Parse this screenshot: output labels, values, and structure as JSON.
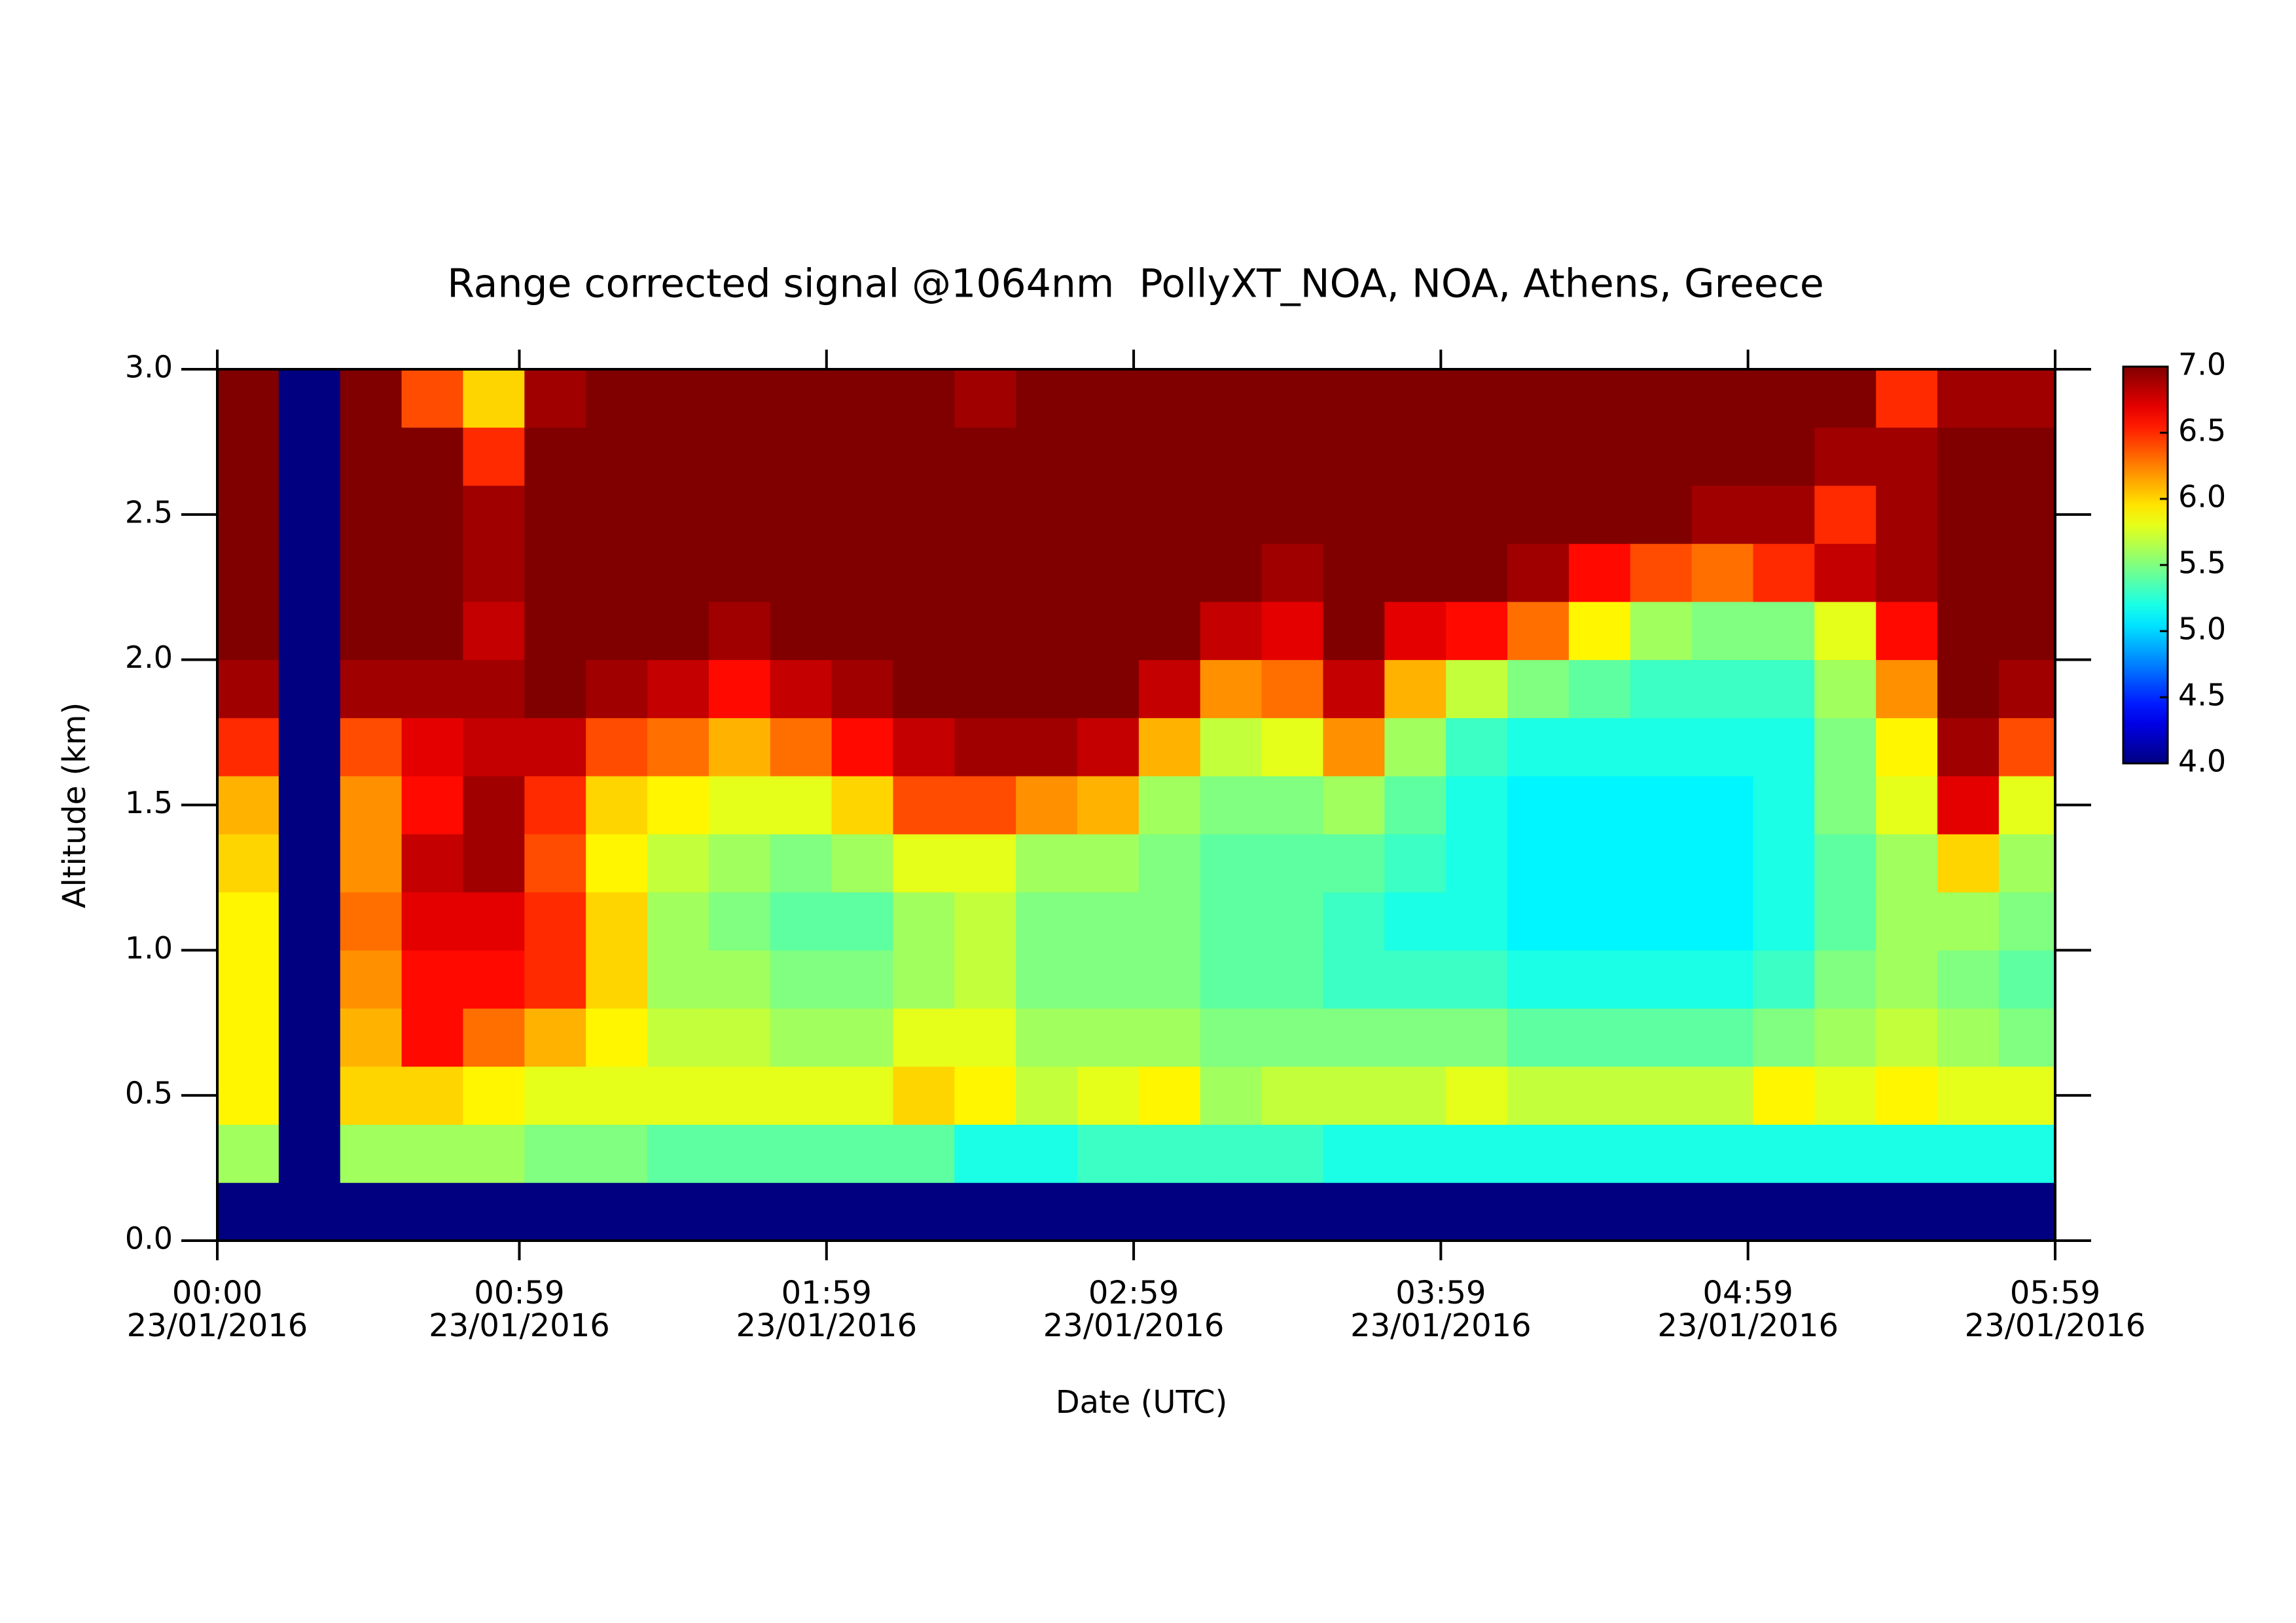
{
  "chart_data": {
    "type": "heatmap",
    "title": "Range corrected signal @1064nm  PollyXT_NOA, NOA, Athens, Greece",
    "x_label": "Date (UTC)",
    "y_label": "Altitude (km)",
    "xlim": [
      0,
      359
    ],
    "xticks": [
      {
        "value": 0,
        "label": "00:00\n23/01/2016"
      },
      {
        "value": 59,
        "label": "00:59\n23/01/2016"
      },
      {
        "value": 119,
        "label": "01:59\n23/01/2016"
      },
      {
        "value": 179,
        "label": "02:59\n23/01/2016"
      },
      {
        "value": 239,
        "label": "03:59\n23/01/2016"
      },
      {
        "value": 299,
        "label": "04:59\n23/01/2016"
      },
      {
        "value": 359,
        "label": "05:59\n23/01/2016"
      }
    ],
    "ylim": [
      0,
      3
    ],
    "yticks": [
      {
        "value": 0,
        "label": "0.0"
      },
      0.5,
      {
        "value": 1,
        "label": "1.0"
      },
      1.5,
      {
        "value": 2,
        "label": "2.0"
      },
      2.5,
      {
        "value": 3,
        "label": "3.0"
      }
    ],
    "colormap": "jet",
    "zlim": [
      4,
      7
    ],
    "zticks": [
      {
        "value": 4,
        "label": "4.0"
      },
      4.5,
      {
        "value": 5,
        "label": "5.0"
      },
      5.5,
      {
        "value": 6,
        "label": "6.0"
      },
      6.5,
      {
        "value": 7,
        "label": "7.0"
      }
    ],
    "x": [
      6,
      18,
      30,
      42,
      54,
      66,
      78,
      90,
      102,
      114,
      126,
      138,
      150,
      162,
      174,
      186,
      198,
      210,
      222,
      234,
      246,
      258,
      270,
      282,
      294,
      306,
      318,
      330,
      342,
      354
    ],
    "y": [
      0.1,
      0.3,
      0.5,
      0.7,
      0.9,
      1.1,
      1.3,
      1.5,
      1.7,
      1.9,
      2.1,
      2.3,
      2.5,
      2.7,
      2.9
    ],
    "z": [
      [
        4.0,
        5.6,
        5.9,
        5.9,
        5.9,
        5.9,
        6.0,
        6.1,
        6.5,
        6.9,
        7.0,
        7.0,
        7.0,
        7.0,
        7.0
      ],
      [
        4.0,
        4.0,
        4.0,
        4.0,
        4.0,
        4.0,
        4.0,
        4.0,
        4.0,
        4.0,
        4.0,
        4.0,
        4.0,
        4.0,
        4.0
      ],
      [
        4.0,
        5.6,
        6.0,
        6.1,
        6.2,
        6.3,
        6.2,
        6.2,
        6.4,
        6.9,
        7.0,
        7.0,
        7.0,
        7.0,
        7.0
      ],
      [
        4.0,
        5.6,
        6.0,
        6.6,
        6.6,
        6.7,
        6.8,
        6.6,
        6.7,
        6.9,
        7.0,
        7.0,
        7.0,
        7.0,
        6.4
      ],
      [
        4.0,
        5.6,
        5.9,
        6.3,
        6.6,
        6.7,
        6.9,
        6.9,
        6.8,
        6.9,
        6.8,
        6.9,
        6.9,
        6.5,
        6.0
      ],
      [
        4.0,
        5.5,
        5.8,
        6.1,
        6.5,
        6.5,
        6.4,
        6.5,
        6.8,
        7.0,
        7.0,
        7.0,
        7.0,
        7.0,
        6.9
      ],
      [
        4.0,
        5.5,
        5.8,
        5.9,
        6.0,
        6.0,
        5.9,
        6.0,
        6.4,
        6.9,
        7.0,
        7.0,
        7.0,
        7.0,
        7.0
      ],
      [
        4.0,
        5.4,
        5.8,
        5.7,
        5.6,
        5.6,
        5.7,
        5.9,
        6.3,
        6.8,
        7.0,
        7.0,
        7.0,
        7.0,
        7.0
      ],
      [
        4.0,
        5.4,
        5.8,
        5.7,
        5.6,
        5.5,
        5.6,
        5.8,
        6.1,
        6.6,
        6.9,
        7.0,
        7.0,
        7.0,
        7.0
      ],
      [
        4.0,
        5.4,
        5.8,
        5.6,
        5.5,
        5.4,
        5.5,
        5.8,
        6.3,
        6.8,
        7.0,
        7.0,
        7.0,
        7.0,
        7.0
      ],
      [
        4.0,
        5.4,
        5.8,
        5.6,
        5.5,
        5.4,
        5.6,
        6.0,
        6.6,
        6.9,
        7.0,
        7.0,
        7.0,
        7.0,
        7.0
      ],
      [
        4.0,
        5.4,
        6.0,
        5.8,
        5.6,
        5.6,
        5.8,
        6.4,
        6.8,
        7.0,
        7.0,
        7.0,
        7.0,
        7.0,
        7.0
      ],
      [
        4.0,
        5.2,
        5.9,
        5.8,
        5.7,
        5.7,
        5.8,
        6.4,
        6.9,
        7.0,
        7.0,
        7.0,
        7.0,
        7.0,
        6.9
      ],
      [
        4.0,
        5.2,
        5.7,
        5.6,
        5.5,
        5.5,
        5.6,
        6.2,
        6.9,
        7.0,
        7.0,
        7.0,
        7.0,
        7.0,
        7.0
      ],
      [
        4.0,
        5.3,
        5.8,
        5.6,
        5.5,
        5.5,
        5.6,
        6.1,
        6.8,
        7.0,
        7.0,
        7.0,
        7.0,
        7.0,
        7.0
      ],
      [
        4.0,
        5.3,
        5.9,
        5.6,
        5.5,
        5.5,
        5.5,
        5.6,
        6.1,
        6.8,
        7.0,
        7.0,
        7.0,
        7.0,
        7.0
      ],
      [
        4.0,
        5.3,
        5.6,
        5.5,
        5.4,
        5.4,
        5.4,
        5.5,
        5.7,
        6.2,
        6.8,
        7.0,
        7.0,
        7.0,
        7.0
      ],
      [
        4.0,
        5.3,
        5.7,
        5.5,
        5.4,
        5.4,
        5.4,
        5.5,
        5.8,
        6.3,
        6.7,
        6.9,
        7.0,
        7.0,
        7.0
      ],
      [
        4.0,
        5.2,
        5.7,
        5.5,
        5.3,
        5.3,
        5.4,
        5.6,
        6.2,
        6.8,
        7.0,
        7.0,
        7.0,
        7.0,
        7.0
      ],
      [
        4.0,
        5.2,
        5.7,
        5.5,
        5.3,
        5.2,
        5.3,
        5.4,
        5.6,
        6.1,
        6.7,
        7.0,
        7.0,
        7.0,
        7.0
      ],
      [
        4.0,
        5.2,
        5.8,
        5.5,
        5.3,
        5.2,
        5.2,
        5.2,
        5.3,
        5.7,
        6.6,
        7.0,
        7.0,
        7.0,
        7.0
      ],
      [
        4.0,
        5.2,
        5.7,
        5.4,
        5.2,
        5.1,
        5.1,
        5.1,
        5.2,
        5.5,
        6.3,
        6.9,
        7.0,
        7.0,
        7.0
      ],
      [
        4.0,
        5.2,
        5.7,
        5.4,
        5.2,
        5.1,
        5.1,
        5.1,
        5.2,
        5.4,
        5.9,
        6.6,
        7.0,
        7.0,
        7.0
      ],
      [
        4.0,
        5.2,
        5.7,
        5.4,
        5.2,
        5.1,
        5.1,
        5.1,
        5.2,
        5.3,
        5.6,
        6.4,
        7.0,
        7.0,
        7.0
      ],
      [
        4.0,
        5.2,
        5.7,
        5.4,
        5.2,
        5.1,
        5.1,
        5.1,
        5.2,
        5.3,
        5.5,
        6.3,
        6.9,
        7.0,
        7.0
      ],
      [
        4.0,
        5.2,
        5.9,
        5.5,
        5.3,
        5.2,
        5.2,
        5.2,
        5.2,
        5.3,
        5.5,
        6.5,
        6.9,
        7.0,
        7.0
      ],
      [
        4.0,
        5.2,
        5.8,
        5.6,
        5.5,
        5.4,
        5.4,
        5.5,
        5.5,
        5.6,
        5.8,
        6.8,
        6.5,
        6.9,
        7.0
      ],
      [
        4.0,
        5.2,
        5.9,
        5.7,
        5.6,
        5.6,
        5.6,
        5.8,
        5.9,
        6.2,
        6.6,
        6.9,
        6.9,
        6.9,
        6.5
      ],
      [
        4.0,
        5.2,
        5.8,
        5.6,
        5.5,
        5.6,
        6.0,
        6.7,
        6.9,
        7.0,
        7.0,
        7.0,
        7.0,
        7.0,
        6.9
      ],
      [
        4.0,
        5.2,
        5.8,
        5.5,
        5.4,
        5.5,
        5.6,
        5.8,
        6.4,
        6.9,
        7.0,
        7.0,
        7.0,
        7.0,
        6.9
      ]
    ]
  }
}
